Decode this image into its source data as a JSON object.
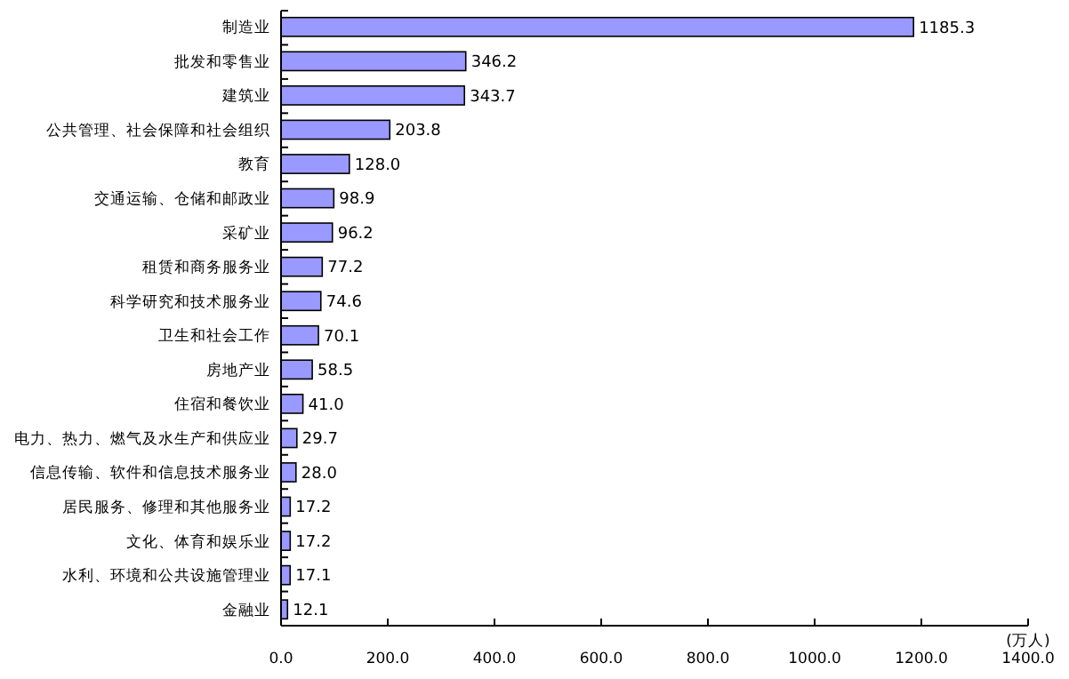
{
  "chart_data": {
    "type": "bar",
    "orientation": "horizontal",
    "xlabel": "(万人)",
    "categories": [
      "制造业",
      "批发和零售业",
      "建筑业",
      "公共管理、社会保障和社会组织",
      "教育",
      "交通运输、仓储和邮政业",
      "采矿业",
      "租赁和商务服务业",
      "科学研究和技术服务业",
      "卫生和社会工作",
      "房地产业",
      "住宿和餐饮业",
      "电力、热力、燃气及水生产和供应业",
      "信息传输、软件和信息技术服务业",
      "居民服务、修理和其他服务业",
      "文化、体育和娱乐业",
      "水利、环境和公共设施管理业",
      "金融业"
    ],
    "values": [
      1185.3,
      346.2,
      343.7,
      203.8,
      128.0,
      98.9,
      96.2,
      77.2,
      74.6,
      70.1,
      58.5,
      41.0,
      29.7,
      28.0,
      17.2,
      17.2,
      17.1,
      12.1
    ],
    "value_labels": [
      "1185.3",
      "346.2",
      "343.7",
      "203.8",
      "128.0",
      "98.9",
      "96.2",
      "77.2",
      "74.6",
      "70.1",
      "58.5",
      "41.0",
      "29.7",
      "28.0",
      "17.2",
      "17.2",
      "17.1",
      "12.1"
    ],
    "color": "#9999ff",
    "xlim": [
      0,
      1400
    ],
    "xticks": [
      {
        "value": 0,
        "label": "0.0"
      },
      {
        "value": 200,
        "label": "200.0"
      },
      {
        "value": 400,
        "label": "400.0"
      },
      {
        "value": 600,
        "label": "600.0"
      },
      {
        "value": 800,
        "label": "800.0"
      },
      {
        "value": 1000,
        "label": "1000.0"
      },
      {
        "value": 1200,
        "label": "1200.0"
      },
      {
        "value": 1400,
        "label": "1400.0"
      }
    ],
    "grid": false
  }
}
